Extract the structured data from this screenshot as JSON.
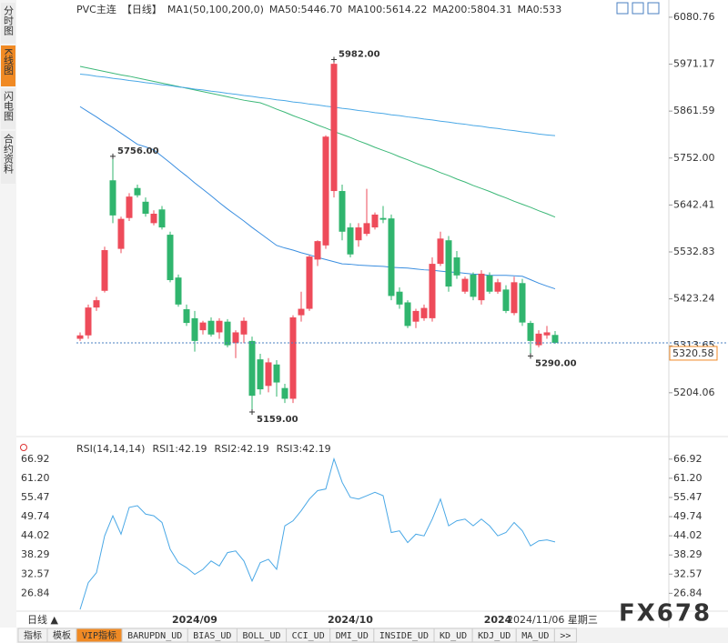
{
  "sidebar_tabs": [
    "分时图",
    "K线图",
    "闪电图",
    "合约资料"
  ],
  "chart_data": [
    {
      "type": "candlestick",
      "title": "PVC主连",
      "period": "【日线】",
      "indicator": "MA1(50,100,200,0)",
      "ma0_label": "MA0:533",
      "up_color": "#ee4b5a",
      "down_color": "#30b56e",
      "categories": [
        null,
        null,
        null,
        null,
        null,
        null,
        null,
        null,
        null,
        null,
        null,
        null,
        null,
        null,
        "2024/09",
        null,
        null,
        null,
        null,
        null,
        null,
        null,
        null,
        null,
        null,
        null,
        null,
        null,
        null,
        null,
        null,
        null,
        null,
        "2024/10",
        null,
        null,
        null,
        null,
        null,
        null,
        null,
        null,
        null,
        null,
        null,
        null,
        null,
        null,
        null,
        null,
        null,
        "2024",
        null,
        null,
        null,
        null,
        null,
        null,
        null
      ],
      "open": [
        5330,
        5338,
        5403,
        5442,
        5700,
        5540,
        5612,
        5682,
        5650,
        5600,
        5632,
        5573,
        5473,
        5399,
        5378,
        5350,
        5372,
        5345,
        5370,
        5320,
        5340,
        5325,
        5282,
        5220,
        5270,
        5215,
        5190,
        5385,
        5400,
        5515,
        5548,
        5675,
        5675,
        5590,
        5560,
        5575,
        5590,
        5612,
        5611,
        5440,
        5415,
        5370,
        5378,
        5378,
        5505,
        5560,
        5520,
        5440,
        5480,
        5420,
        5478,
        5440,
        5445,
        5390,
        5460,
        5367,
        5315,
        5338,
        5339
      ],
      "high": [
        5345,
        5410,
        5428,
        5545,
        5756,
        5615,
        5670,
        5690,
        5660,
        5630,
        5640,
        5580,
        5480,
        5410,
        5395,
        5372,
        5380,
        5378,
        5376,
        5350,
        5380,
        5335,
        5295,
        5285,
        5280,
        5225,
        5385,
        5440,
        5525,
        5560,
        5805,
        5982,
        5690,
        5600,
        5600,
        5680,
        5625,
        5640,
        5620,
        5450,
        5420,
        5400,
        5410,
        5520,
        5580,
        5570,
        5535,
        5475,
        5485,
        5490,
        5485,
        5470,
        5455,
        5475,
        5470,
        5372,
        5350,
        5360,
        5348
      ],
      "low": [
        5325,
        5330,
        5395,
        5438,
        5600,
        5530,
        5605,
        5660,
        5615,
        5595,
        5585,
        5462,
        5405,
        5360,
        5300,
        5340,
        5335,
        5330,
        5310,
        5285,
        5320,
        5159,
        5200,
        5205,
        5195,
        5180,
        5180,
        5370,
        5395,
        5500,
        5540,
        5660,
        5560,
        5520,
        5545,
        5570,
        5585,
        5600,
        5420,
        5400,
        5355,
        5355,
        5372,
        5370,
        5500,
        5440,
        5470,
        5435,
        5420,
        5410,
        5435,
        5435,
        5390,
        5385,
        5360,
        5290,
        5310,
        5330,
        5318
      ],
      "close": [
        5338,
        5403,
        5420,
        5537,
        5618,
        5610,
        5662,
        5665,
        5622,
        5622,
        5590,
        5467,
        5410,
        5367,
        5325,
        5368,
        5340,
        5372,
        5315,
        5345,
        5372,
        5197,
        5212,
        5275,
        5228,
        5190,
        5380,
        5400,
        5522,
        5558,
        5802,
        5972,
        5580,
        5527,
        5590,
        5600,
        5620,
        5608,
        5430,
        5410,
        5360,
        5395,
        5402,
        5505,
        5564,
        5452,
        5478,
        5470,
        5428,
        5482,
        5440,
        5462,
        5395,
        5462,
        5368,
        5325,
        5342,
        5345,
        5320.58
      ],
      "series": [
        {
          "name": "MA50:5446.70",
          "color": "#3a8ee0",
          "values": [
            5872,
            5860,
            5848,
            5835,
            5823,
            5810,
            5797,
            5784,
            5778,
            5771,
            5756,
            5741,
            5725,
            5710,
            5694,
            5679,
            5664,
            5648,
            5633,
            5619,
            5605,
            5590,
            5576,
            5562,
            5548,
            5542,
            5537,
            5531,
            5526,
            5520,
            5515,
            5510,
            5505,
            5504,
            5502,
            5501,
            5500,
            5499,
            5497,
            5496,
            5495,
            5493,
            5491,
            5490,
            5488,
            5486,
            5485,
            5483,
            5481,
            5480,
            5478,
            5478,
            5478,
            5477,
            5476,
            5468,
            5460,
            5453,
            5446.7
          ]
        },
        {
          "name": "MA100:5614.22",
          "color": "#3cb878",
          "values": [
            5966,
            5962,
            5958,
            5954,
            5950,
            5946,
            5943,
            5939,
            5935,
            5931,
            5927,
            5923,
            5919,
            5915,
            5911,
            5907,
            5903,
            5899,
            5895,
            5891,
            5887,
            5884,
            5881,
            5874,
            5866,
            5859,
            5851,
            5844,
            5837,
            5829,
            5822,
            5814,
            5807,
            5800,
            5792,
            5785,
            5777,
            5770,
            5763,
            5755,
            5748,
            5740,
            5733,
            5726,
            5718,
            5711,
            5703,
            5696,
            5688,
            5681,
            5674,
            5666,
            5659,
            5651,
            5644,
            5637,
            5629,
            5622,
            5614.22
          ]
        },
        {
          "name": "MA200:5804.31",
          "color": "#4aa8e6",
          "values": [
            5948,
            5946,
            5943,
            5941,
            5938,
            5936,
            5933,
            5931,
            5928,
            5926,
            5923,
            5921,
            5918,
            5916,
            5913,
            5911,
            5908,
            5906,
            5903,
            5901,
            5898,
            5896,
            5893,
            5891,
            5888,
            5886,
            5883,
            5881,
            5878,
            5876,
            5873,
            5871,
            5868,
            5866,
            5863,
            5861,
            5858,
            5856,
            5853,
            5851,
            5848,
            5846,
            5843,
            5841,
            5838,
            5836,
            5833,
            5831,
            5828,
            5826,
            5823,
            5821,
            5818,
            5816,
            5813,
            5811,
            5808,
            5806,
            5804.31
          ]
        }
      ],
      "annotations": [
        {
          "value": 5756,
          "label": "5756.00"
        },
        {
          "value": 5982,
          "label": "5982.00"
        },
        {
          "value": 5159,
          "label": "5159.00"
        },
        {
          "value": 5290,
          "label": "5290.00"
        }
      ],
      "last_price": {
        "value": 5320.58,
        "label": "5320.58",
        "color": "#f08a24"
      },
      "ylim": [
        5106,
        6104
      ],
      "yticks": [
        6080.76,
        5971.17,
        5861.59,
        {
          "value": 5752,
          "label": "5752.00"
        },
        5642.41,
        5532.83,
        5423.24,
        5313.65,
        5204.06
      ],
      "grid": false
    },
    {
      "type": "line",
      "title": "RSI(14,14,14)",
      "series": [
        {
          "name": "RSI1:42.19",
          "color": "#4aa8e6",
          "values": [
            22,
            30,
            33,
            44,
            50,
            44.5,
            52.5,
            53,
            50.5,
            50,
            48,
            40,
            36,
            34.5,
            32.5,
            34,
            36.5,
            35,
            39,
            39.5,
            36.5,
            30.5,
            36,
            37,
            34,
            47,
            48.5,
            51.5,
            55,
            57.5,
            58,
            67,
            60,
            55.5,
            55,
            56,
            57,
            56,
            45,
            45.5,
            42,
            44.5,
            44,
            49,
            55,
            47,
            48.5,
            49,
            47,
            49,
            47,
            44,
            45,
            48,
            45.5,
            41,
            42.5,
            42.8,
            42.19
          ]
        }
      ],
      "legend_extra": [
        {
          "name": "RSI2:42.19",
          "color": "#3cb878"
        },
        {
          "name": "RSI3:42.19",
          "color": "#4aa8e6"
        }
      ],
      "ylim": [
        21.5,
        69.05
      ],
      "yticks": [
        66.92,
        {
          "value": 61.2,
          "label": "61.20"
        },
        55.47,
        49.74,
        44.02,
        38.29,
        32.57,
        26.84
      ],
      "grid": false
    }
  ],
  "period_label": "日线 ▲",
  "cursor_date": "2024/11/06 星期三",
  "tabs": [
    "指标",
    "模板",
    "VIP指标",
    "BARUPDN_UD",
    "BIAS_UD",
    "BOLL_UD",
    "CCI_UD",
    "DMI_UD",
    "INSIDE_UD",
    "KD_UD",
    "KDJ_UD",
    "MA_UD",
    ">>"
  ],
  "watermark": "FX678"
}
